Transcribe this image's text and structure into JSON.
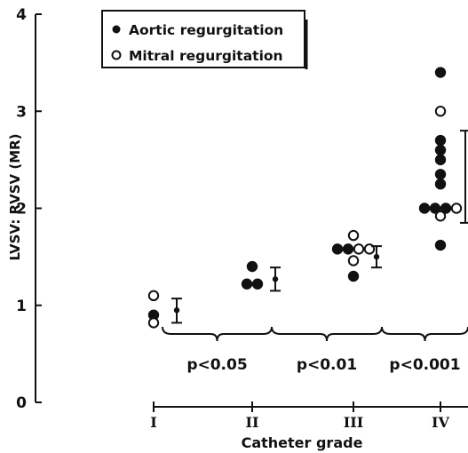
{
  "chart_data": {
    "type": "scatter",
    "title": "",
    "xlabel": "Catheter grade",
    "ylabel": "LVSV: RVSV (MR)",
    "categories": [
      "I",
      "II",
      "III",
      "IV"
    ],
    "ylim": [
      0,
      4
    ],
    "yticks": [
      "0",
      "1",
      "2",
      "3",
      "4"
    ],
    "legend_position": "top-left",
    "series": [
      {
        "name": "Aortic regurgitation",
        "marker": "filled-circle",
        "points": [
          {
            "category": "I",
            "y": 0.9
          },
          {
            "category": "II",
            "y": 1.22
          },
          {
            "category": "II",
            "y": 1.22
          },
          {
            "category": "II",
            "y": 1.4
          },
          {
            "category": "III",
            "y": 1.58
          },
          {
            "category": "III",
            "y": 1.58
          },
          {
            "category": "III",
            "y": 1.3
          },
          {
            "category": "IV",
            "y": 3.4
          },
          {
            "category": "IV",
            "y": 2.7
          },
          {
            "category": "IV",
            "y": 2.6
          },
          {
            "category": "IV",
            "y": 2.5
          },
          {
            "category": "IV",
            "y": 2.35
          },
          {
            "category": "IV",
            "y": 2.25
          },
          {
            "category": "IV",
            "y": 2.0
          },
          {
            "category": "IV",
            "y": 2.0
          },
          {
            "category": "IV",
            "y": 2.0
          },
          {
            "category": "IV",
            "y": 1.62
          }
        ]
      },
      {
        "name": "Mitral regurgitation",
        "marker": "open-circle",
        "points": [
          {
            "category": "I",
            "y": 1.1
          },
          {
            "category": "I",
            "y": 0.82
          },
          {
            "category": "III",
            "y": 1.58
          },
          {
            "category": "III",
            "y": 1.58
          },
          {
            "category": "III",
            "y": 1.72
          },
          {
            "category": "III",
            "y": 1.46
          },
          {
            "category": "IV",
            "y": 3.0
          },
          {
            "category": "IV",
            "y": 2.0
          },
          {
            "category": "IV",
            "y": 1.92
          }
        ]
      }
    ],
    "mean_sd": [
      {
        "category": "I",
        "mean": 0.95,
        "low": 0.82,
        "high": 1.07
      },
      {
        "category": "II",
        "mean": 1.27,
        "low": 1.15,
        "high": 1.39
      },
      {
        "category": "III",
        "mean": 1.5,
        "low": 1.39,
        "high": 1.61
      }
    ],
    "comparisons": [
      {
        "between": [
          "I",
          "II"
        ],
        "label": "p<0.05"
      },
      {
        "between": [
          "II",
          "III"
        ],
        "label": "p<0.01"
      },
      {
        "between": [
          "III",
          "IV"
        ],
        "label": "p<0.001"
      }
    ]
  }
}
